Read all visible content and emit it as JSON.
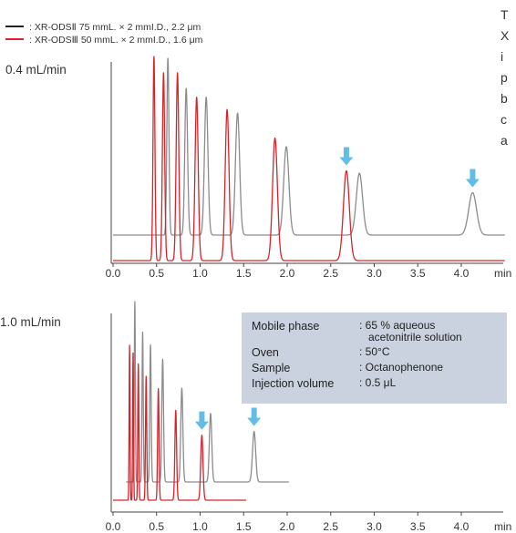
{
  "colors": {
    "gray_series": "#8c8c8c",
    "red_series": "#d9232a",
    "arrow": "#62bde6",
    "info_box": "#c9d2de",
    "axis": "#444444"
  },
  "side_text_lines": [
    "T",
    "X",
    "i",
    "p",
    "b",
    "c",
    "a"
  ],
  "info_box": {
    "rows": [
      {
        "label": "Mobile phase",
        "value": ": 65 % aqueous",
        "value2": "acetonitrile solution"
      },
      {
        "label": "Oven",
        "value": ": 50°C"
      },
      {
        "label": "Sample",
        "value": ": Octanophenone"
      },
      {
        "label": "Injection volume",
        "value": ": 0.5 μL"
      }
    ]
  },
  "chart_data": [
    {
      "type": "line",
      "title": "0.4 mL/min",
      "xlabel": "min",
      "xlim": [
        0,
        4.5
      ],
      "x_ticks": [
        "0.0",
        "0.5",
        "1.0",
        "1.5",
        "2.0",
        "2.5",
        "3.0",
        "3.5",
        "4.0"
      ],
      "legend": [
        {
          "marker": "—",
          "label": ": XR-ODSⅡ 75 mmL. × 2 mmI.D., 2.2 μm",
          "color": "#8c8c8c"
        },
        {
          "marker": "—",
          "label": ": XR-ODSⅢ 50 mmL. × 2 mmI.D., 1.6 μm",
          "color": "#d9232a"
        }
      ],
      "series": [
        {
          "name": ": XR-ODSⅡ 75 mmL. × 2 mmI.D., 2.2 μm",
          "color": "#8c8c8c",
          "peak_times": [
            0.63,
            0.84,
            1.07,
            1.43,
            1.99,
            2.83,
            4.13
          ],
          "peak_heights": [
            1.0,
            0.83,
            0.78,
            0.69,
            0.5,
            0.35,
            0.24
          ],
          "peak_widths": [
            0.012,
            0.016,
            0.02,
            0.024,
            0.03,
            0.036,
            0.045
          ]
        },
        {
          "name": ": XR-ODSⅢ 50 mmL. × 2 mmI.D., 1.6 μm",
          "color": "#d9232a",
          "peak_times": [
            0.47,
            0.58,
            0.74,
            0.96,
            1.31,
            1.86,
            2.68
          ],
          "peak_heights": [
            1.0,
            0.92,
            0.92,
            0.8,
            0.74,
            0.6,
            0.44
          ],
          "peak_widths": [
            0.011,
            0.013,
            0.015,
            0.018,
            0.022,
            0.028,
            0.034
          ]
        }
      ],
      "arrows_at": [
        2.68,
        4.13
      ]
    },
    {
      "type": "line",
      "title": "1.0 mL/min",
      "xlabel": "min",
      "xlim": [
        0,
        4.5
      ],
      "x_ticks": [
        "0.0",
        "0.5",
        "1.0",
        "1.5",
        "2.0",
        "2.5",
        "3.0",
        "3.5",
        "4.0"
      ],
      "series": [
        {
          "name": ": XR-ODSⅡ 75 mmL. × 2 mmI.D., 2.2 μm",
          "color": "#8c8c8c",
          "peak_times": [
            0.25,
            0.34,
            0.43,
            0.57,
            0.79,
            1.12,
            1.62
          ],
          "peak_heights": [
            1.0,
            0.83,
            0.76,
            0.68,
            0.52,
            0.38,
            0.28
          ],
          "peak_widths": [
            0.006,
            0.007,
            0.008,
            0.01,
            0.012,
            0.014,
            0.018
          ]
        },
        {
          "name": ": XR-ODSⅢ 50 mmL. × 2 mmI.D., 1.6 μm",
          "color": "#d9232a",
          "peak_times": [
            0.19,
            0.23,
            0.29,
            0.38,
            0.52,
            0.72,
            1.02
          ],
          "peak_heights": [
            1.0,
            0.95,
            0.88,
            0.8,
            0.72,
            0.58,
            0.42
          ],
          "peak_widths": [
            0.005,
            0.005,
            0.006,
            0.007,
            0.008,
            0.01,
            0.013
          ]
        }
      ],
      "arrows_at": [
        1.02,
        1.62
      ]
    }
  ]
}
